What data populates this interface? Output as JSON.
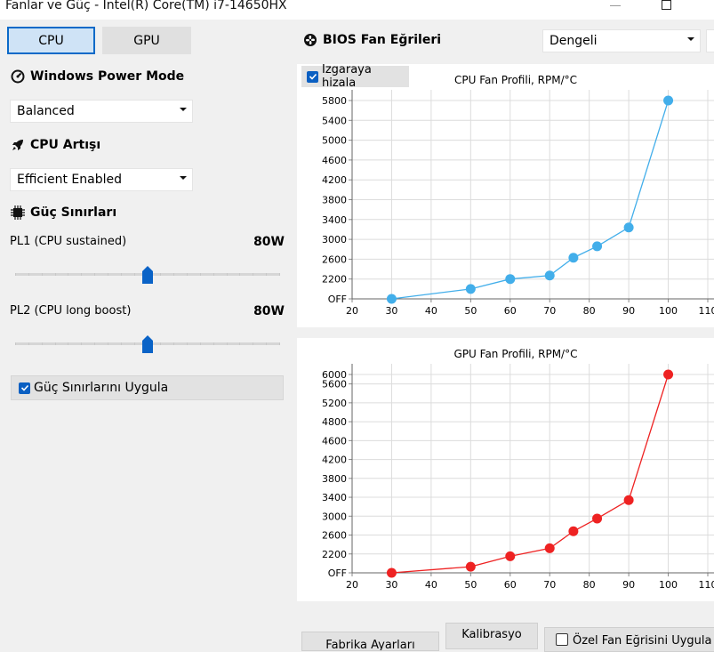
{
  "window": {
    "title": "Fanlar ve Güç - Intel(R) Core(TM) i7-14650HX"
  },
  "tabs": [
    {
      "label": "CPU",
      "selected": true
    },
    {
      "label": "GPU",
      "selected": false
    }
  ],
  "left": {
    "power_mode": {
      "title": "Windows Power Mode",
      "value": "Balanced",
      "icon": "gauge-icon"
    },
    "cpu_boost": {
      "title": "CPU Artışı",
      "value": "Efficient Enabled",
      "icon": "rocket-icon"
    },
    "power_limits": {
      "title": "Güç Sınırları",
      "icon": "chip-icon",
      "pl1": {
        "label": "PL1 (CPU sustained)",
        "value": "80W",
        "level": 0.5
      },
      "pl2": {
        "label": "PL2 (CPU long boost)",
        "value": "80W",
        "level": 0.5
      }
    },
    "apply": {
      "label": "Güç Sınırlarını Uygula",
      "checked": true
    }
  },
  "right": {
    "title": "BIOS Fan Eğrileri",
    "icon": "fan-icon",
    "profile_value": "Dengeli",
    "snap_grid": {
      "label": "Izgaraya hizala",
      "checked": true
    }
  },
  "buttons": {
    "factory": "Fabrika Ayarları",
    "calibration": "Kalibrasyo",
    "custom_curve": "Özel Fan Eğrisini Uygula"
  },
  "chart_data": [
    {
      "type": "line",
      "title": "CPU Fan Profili, RPM/°C",
      "color": "#42aeea",
      "x": [
        30,
        50,
        60,
        70,
        76,
        82,
        90,
        100
      ],
      "y": [
        1800,
        2000,
        2200,
        2270,
        2630,
        2860,
        3240,
        5800
      ],
      "xlim": [
        20,
        110
      ],
      "ylim": [
        1800,
        5800
      ],
      "xticks": [
        "20",
        "30",
        "40",
        "50",
        "60",
        "70",
        "80",
        "90",
        "100",
        "110"
      ],
      "yticks": [
        "OFF",
        "2200",
        "2600",
        "3000",
        "3400",
        "3800",
        "4200",
        "4600",
        "5000",
        "5400",
        "5800"
      ],
      "grid": true
    },
    {
      "type": "line",
      "title": "GPU Fan Profili, RPM/°C",
      "color": "#ee2222",
      "x": [
        30,
        50,
        60,
        70,
        76,
        82,
        90,
        100
      ],
      "y": [
        1800,
        1930,
        2150,
        2320,
        2680,
        2950,
        3340,
        6000
      ],
      "xlim": [
        20,
        110
      ],
      "ylim": [
        1800,
        6000
      ],
      "xticks": [
        "20",
        "30",
        "40",
        "50",
        "60",
        "70",
        "80",
        "90",
        "100",
        "110"
      ],
      "yticks": [
        "OFF",
        "2200",
        "2600",
        "3000",
        "3400",
        "3800",
        "4200",
        "4600",
        "4800",
        "5200",
        "5600",
        "6000"
      ],
      "grid": true
    }
  ]
}
